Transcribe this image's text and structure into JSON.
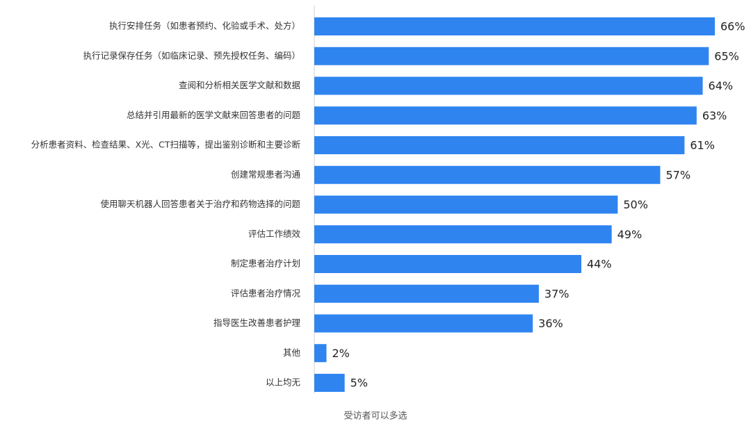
{
  "chart_data": {
    "type": "barh",
    "categories": [
      "执行安排任务（如患者预约、化验或手术、处方）",
      "执行记录保存任务（如临床记录、预先授权任务、编码）",
      "查阅和分析相关医学文献和数据",
      "总结并引用最新的医学文献来回答患者的问题",
      "分析患者资料、检查结果、X光、CT扫描等，提出鉴别诊断和主要诊断",
      "创建常规患者沟通",
      "使用聊天机器人回答患者关于治疗和药物选择的问题",
      "评估工作绩效",
      "制定患者治疗计划",
      "评估患者治疗情况",
      "指导医生改善患者护理",
      "其他",
      "以上均无"
    ],
    "values": [
      66,
      65,
      64,
      63,
      61,
      57,
      50,
      49,
      44,
      37,
      36,
      2,
      5
    ],
    "value_labels": [
      "66%",
      "65%",
      "64%",
      "63%",
      "61%",
      "57%",
      "50%",
      "49%",
      "44%",
      "37%",
      "36%",
      "2%",
      "5%"
    ],
    "color": "#2f84f0",
    "note": "受访者可以多选"
  }
}
